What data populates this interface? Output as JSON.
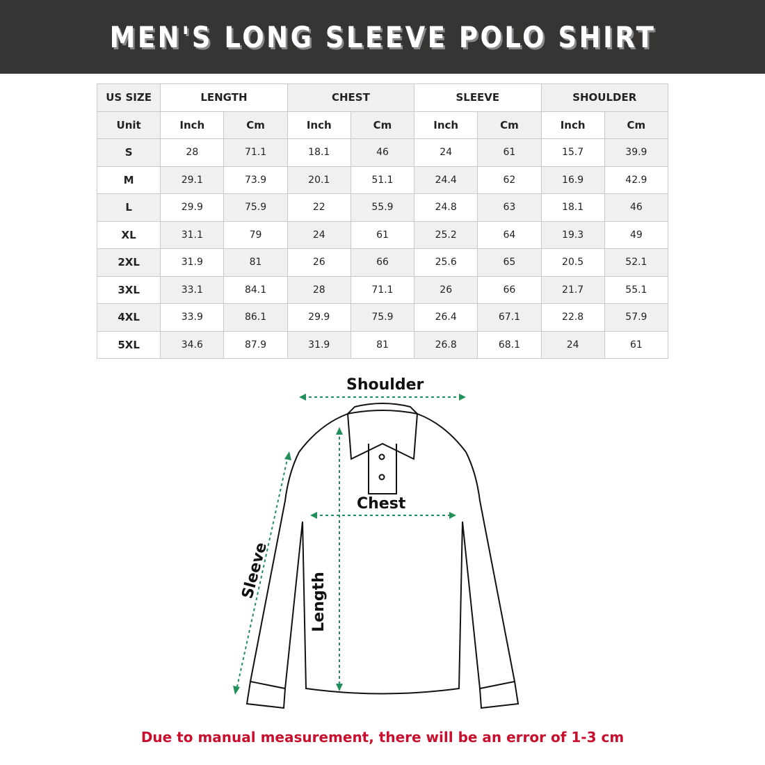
{
  "title": "MEN'S LONG SLEEVE POLO SHIRT",
  "table": {
    "groups": [
      "US SIZE",
      "LENGTH",
      "CHEST",
      "SLEEVE",
      "SHOULDER"
    ],
    "unit_label": "Unit",
    "units": [
      "Inch",
      "Cm",
      "Inch",
      "Cm",
      "Inch",
      "Cm",
      "Inch",
      "Cm"
    ],
    "rows": [
      [
        "S",
        "28",
        "71.1",
        "18.1",
        "46",
        "24",
        "61",
        "15.7",
        "39.9"
      ],
      [
        "M",
        "29.1",
        "73.9",
        "20.1",
        "51.1",
        "24.4",
        "62",
        "16.9",
        "42.9"
      ],
      [
        "L",
        "29.9",
        "75.9",
        "22",
        "55.9",
        "24.8",
        "63",
        "18.1",
        "46"
      ],
      [
        "XL",
        "31.1",
        "79",
        "24",
        "61",
        "25.2",
        "64",
        "19.3",
        "49"
      ],
      [
        "2XL",
        "31.9",
        "81",
        "26",
        "66",
        "25.6",
        "65",
        "20.5",
        "52.1"
      ],
      [
        "3XL",
        "33.1",
        "84.1",
        "28",
        "71.1",
        "26",
        "66",
        "21.7",
        "55.1"
      ],
      [
        "4XL",
        "33.9",
        "86.1",
        "29.9",
        "75.9",
        "26.4",
        "67.1",
        "22.8",
        "57.9"
      ],
      [
        "5XL",
        "34.6",
        "87.9",
        "31.9",
        "81",
        "26.8",
        "68.1",
        "24",
        "61"
      ]
    ]
  },
  "diagram": {
    "shoulder": "Shoulder",
    "chest": "Chest",
    "sleeve": "Sleeve",
    "length": "Length",
    "arrow_color": "#23905a"
  },
  "note": "Due to manual measurement, there will be an error of 1-3 cm",
  "colors": {
    "banner": "#363533",
    "note": "#c8102e"
  }
}
